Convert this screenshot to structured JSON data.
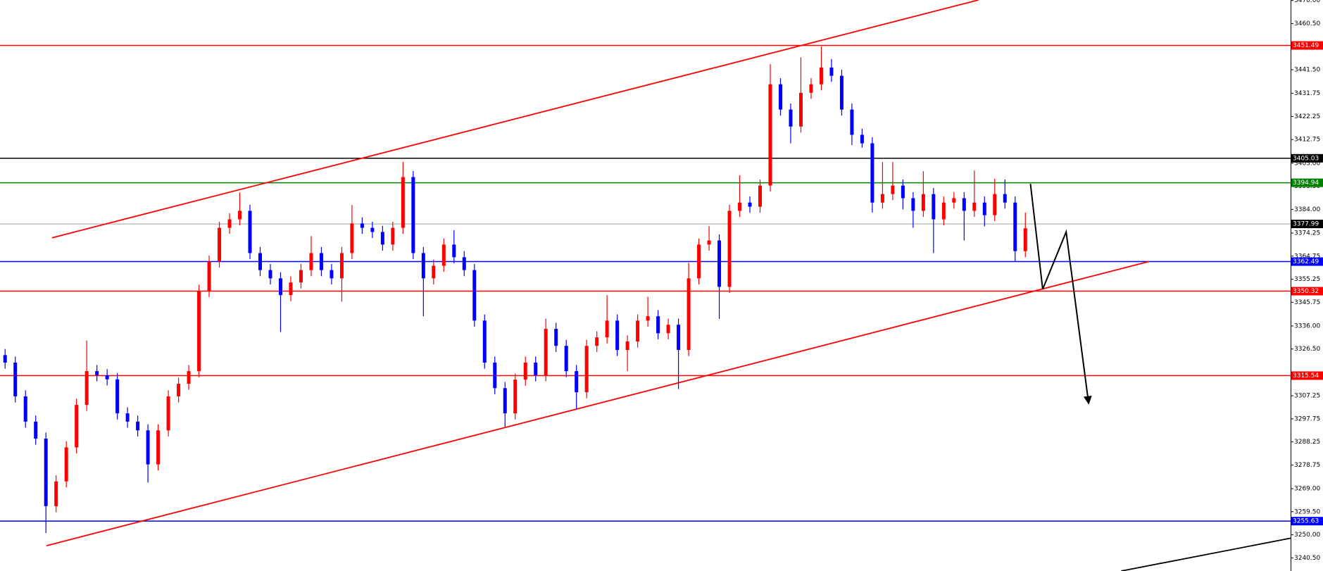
{
  "chart_data": {
    "type": "candlestick",
    "xlim": [
      -0.5,
      126
    ],
    "ylim": [
      3235.1,
      3470.2
    ],
    "up_color": "#ff0000",
    "down_color": "#0000ff",
    "open": [
      3324,
      3320.9,
      3307,
      3296.6,
      3289.6,
      3261.8,
      3272,
      3286,
      3303.5,
      3317.4,
      3315.7,
      3314,
      3300,
      3296.6,
      3293,
      3279,
      3293,
      3307,
      3312.2,
      3317.4,
      3350.4,
      3362.5,
      3376.4,
      3379.9,
      3383.4,
      3366,
      3359,
      3355.6,
      3348.7,
      3353.9,
      3359,
      3366,
      3359,
      3355.6,
      3366,
      3378.2,
      3376.4,
      3374.7,
      3369.5,
      3376.4,
      3397.3,
      3366,
      3355.6,
      3360.8,
      3369.5,
      3364.3,
      3359,
      3338.2,
      3320.9,
      3310.4,
      3300,
      3313.9,
      3320.9,
      3315.7,
      3334.8,
      3327.8,
      3317.4,
      3308.7,
      3327.8,
      3331.3,
      3338.2,
      3326.1,
      3329.6,
      3338.2,
      3340,
      3333,
      3336.5,
      3326.1,
      3355.6,
      3369.5,
      3371.2,
      3352.1,
      3383.4,
      3386.8,
      3385.1,
      3393.8,
      3435.5,
      3425.1,
      3418.1,
      3432,
      3435.5,
      3442.4,
      3439,
      3425.1,
      3414.7,
      3411.2,
      3386.8,
      3390.3,
      3393.8,
      3388.6,
      3383.4,
      3390.3,
      3379.9,
      3386.8,
      3388.6,
      3383.4,
      3386.8,
      3381.6,
      3390.3,
      3386.8,
      3366.8
    ],
    "high": [
      3326.5,
      3323.4,
      3309.5,
      3299.1,
      3292.1,
      3274.5,
      3288.5,
      3306,
      3330,
      3319.9,
      3318.2,
      3316.5,
      3302.5,
      3299.1,
      3295.5,
      3295.5,
      3309.5,
      3314.7,
      3319.9,
      3352.9,
      3365,
      3378.9,
      3382.4,
      3391,
      3385.9,
      3368.5,
      3361.5,
      3358.1,
      3356.4,
      3361.5,
      3373,
      3368.5,
      3361.5,
      3368.5,
      3385.8,
      3380.7,
      3378.9,
      3377.2,
      3378.9,
      3403.5,
      3399.8,
      3368.5,
      3363.3,
      3372,
      3375.4,
      3366.8,
      3361.5,
      3340.7,
      3323.4,
      3312.9,
      3316.4,
      3323.4,
      3323.4,
      3339,
      3337.3,
      3330.3,
      3319.9,
      3330.3,
      3333.8,
      3348.7,
      3340.7,
      3332.1,
      3340.7,
      3348,
      3342.5,
      3339,
      3339,
      3362,
      3372,
      3377.1,
      3373.7,
      3385.9,
      3398,
      3389.3,
      3396.3,
      3443.8,
      3438,
      3427.6,
      3446.6,
      3438,
      3451.1,
      3445.9,
      3441.5,
      3427.6,
      3417.2,
      3413.7,
      3403.5,
      3403.5,
      3396.3,
      3391.1,
      3399.7,
      3392.8,
      3389.3,
      3391.1,
      3391.1,
      3400,
      3389.3,
      3396.6,
      3396.3,
      3389.3,
      3382.7
    ],
    "low": [
      3318.4,
      3304.5,
      3294.1,
      3287.1,
      3250.7,
      3259.3,
      3269.5,
      3283.5,
      3301,
      3313.2,
      3311.5,
      3297.5,
      3294.1,
      3290.5,
      3271.5,
      3276.5,
      3290.5,
      3304.5,
      3309.7,
      3314.9,
      3347.9,
      3360,
      3373.9,
      3377.4,
      3363.5,
      3356.5,
      3353.1,
      3333.5,
      3346.2,
      3351.4,
      3356.5,
      3356.5,
      3353.1,
      3346,
      3363.5,
      3373.9,
      3372.2,
      3367,
      3367,
      3373.9,
      3363.5,
      3340,
      3353.1,
      3358.3,
      3361.8,
      3356.5,
      3335.7,
      3318.4,
      3307.9,
      3294.5,
      3297.5,
      3311.4,
      3313.2,
      3313.2,
      3325.3,
      3314.9,
      3301.8,
      3306.2,
      3325.3,
      3328.8,
      3323.6,
      3317.4,
      3327.1,
      3335.7,
      3330.5,
      3330.5,
      3310,
      3323.6,
      3353.1,
      3367,
      3338.9,
      3349.6,
      3380.9,
      3382.6,
      3382.6,
      3391.3,
      3422.6,
      3411.2,
      3415.6,
      3429.5,
      3433,
      3436.5,
      3422.6,
      3410.5,
      3409.4,
      3382.7,
      3384.3,
      3387.8,
      3384,
      3376.4,
      3380.9,
      3366,
      3377.4,
      3384.3,
      3371.2,
      3380.9,
      3377,
      3379.1,
      3384.3,
      3362.5,
      3364.3
    ],
    "close": [
      3320.9,
      3307,
      3296.6,
      3289.6,
      3261.8,
      3272,
      3286,
      3303.5,
      3317.4,
      3315.7,
      3314,
      3300,
      3296.6,
      3293,
      3279,
      3293,
      3307,
      3312.2,
      3317.4,
      3350.4,
      3362.5,
      3376.4,
      3379.9,
      3383.4,
      3366,
      3359,
      3355.6,
      3348.7,
      3353.9,
      3359,
      3366,
      3359,
      3355.6,
      3366,
      3378.2,
      3376.4,
      3374.7,
      3369.5,
      3376.4,
      3397.3,
      3366,
      3355.6,
      3360.8,
      3369.5,
      3364.3,
      3359,
      3338.2,
      3320.9,
      3310.4,
      3300,
      3313.9,
      3320.9,
      3315.7,
      3334.8,
      3327.8,
      3317.4,
      3308.7,
      3327.8,
      3331.3,
      3338.2,
      3326.1,
      3329.6,
      3338.2,
      3340,
      3333,
      3336.5,
      3326.1,
      3355.6,
      3369.5,
      3371.2,
      3352.1,
      3383.4,
      3386.8,
      3385.1,
      3393.8,
      3435.5,
      3425.1,
      3418.1,
      3432,
      3435.5,
      3442.4,
      3439,
      3425.1,
      3414.7,
      3411.2,
      3386.8,
      3390.3,
      3393.8,
      3388.6,
      3383.4,
      3390.3,
      3379.9,
      3386.8,
      3388.6,
      3383.4,
      3386.8,
      3381.6,
      3390.3,
      3386.8,
      3366.8,
      3376.2
    ],
    "yticks": [
      {
        "value": 3470,
        "label": "3470.00"
      },
      {
        "value": 3460.5,
        "label": "3460.50"
      },
      {
        "value": 3441.5,
        "label": "3441.50"
      },
      {
        "value": 3431.75,
        "label": "3431.75"
      },
      {
        "value": 3422.25,
        "label": "3422.25"
      },
      {
        "value": 3412.75,
        "label": "3412.75"
      },
      {
        "value": 3403,
        "label": "3403.00"
      },
      {
        "value": 3393.5,
        "label": "3393.50"
      },
      {
        "value": 3384,
        "label": "3384.00"
      },
      {
        "value": 3374.25,
        "label": "3374.25"
      },
      {
        "value": 3364.75,
        "label": "3364.75"
      },
      {
        "value": 3355.25,
        "label": "3355.25"
      },
      {
        "value": 3345.75,
        "label": "3345.75"
      },
      {
        "value": 3336,
        "label": "3336.00"
      },
      {
        "value": 3326.5,
        "label": "3326.50"
      },
      {
        "value": 3307.25,
        "label": "3307.25"
      },
      {
        "value": 3297.75,
        "label": "3297.75"
      },
      {
        "value": 3288.25,
        "label": "3288.25"
      },
      {
        "value": 3278.75,
        "label": "3278.75"
      },
      {
        "value": 3269,
        "label": "3269.00"
      },
      {
        "value": 3259.5,
        "label": "3259.50"
      },
      {
        "value": 3250,
        "label": "3250.00"
      },
      {
        "value": 3240.5,
        "label": "3240.50"
      }
    ],
    "levels": [
      {
        "value": 3451.49,
        "color": "#ff0000"
      },
      {
        "value": 3405.03,
        "color": "#000000"
      },
      {
        "value": 3394.94,
        "color": "#008000"
      },
      {
        "value": 3377.99,
        "color": "#c0c0c0",
        "box": "#000000"
      },
      {
        "value": 3362.49,
        "color": "#0000ff"
      },
      {
        "value": 3350.32,
        "color": "#ff0000"
      },
      {
        "value": 3315.54,
        "color": "#ff0000"
      },
      {
        "value": 3255.63,
        "color": "#0000ff"
      }
    ],
    "trend_lines": [
      {
        "color": "#ff0000",
        "x": [
          4.6,
          95.4
        ],
        "y": [
          3372.3,
          3470.2
        ]
      },
      {
        "color": "#ff0000",
        "x": [
          4.05,
          112.1
        ],
        "y": [
          3245.5,
          3362.5
        ]
      },
      {
        "color": "#000000",
        "x": [
          109.4,
          126
        ],
        "y": [
          3235.1,
          3248.6
        ]
      },
      {
        "color": "#000000",
        "x": [
          100.5,
          101.7,
          104,
          106.2
        ],
        "y": [
          3394.5,
          3351.1,
          3374.7,
          3304.2
        ],
        "arrow": true
      }
    ]
  }
}
